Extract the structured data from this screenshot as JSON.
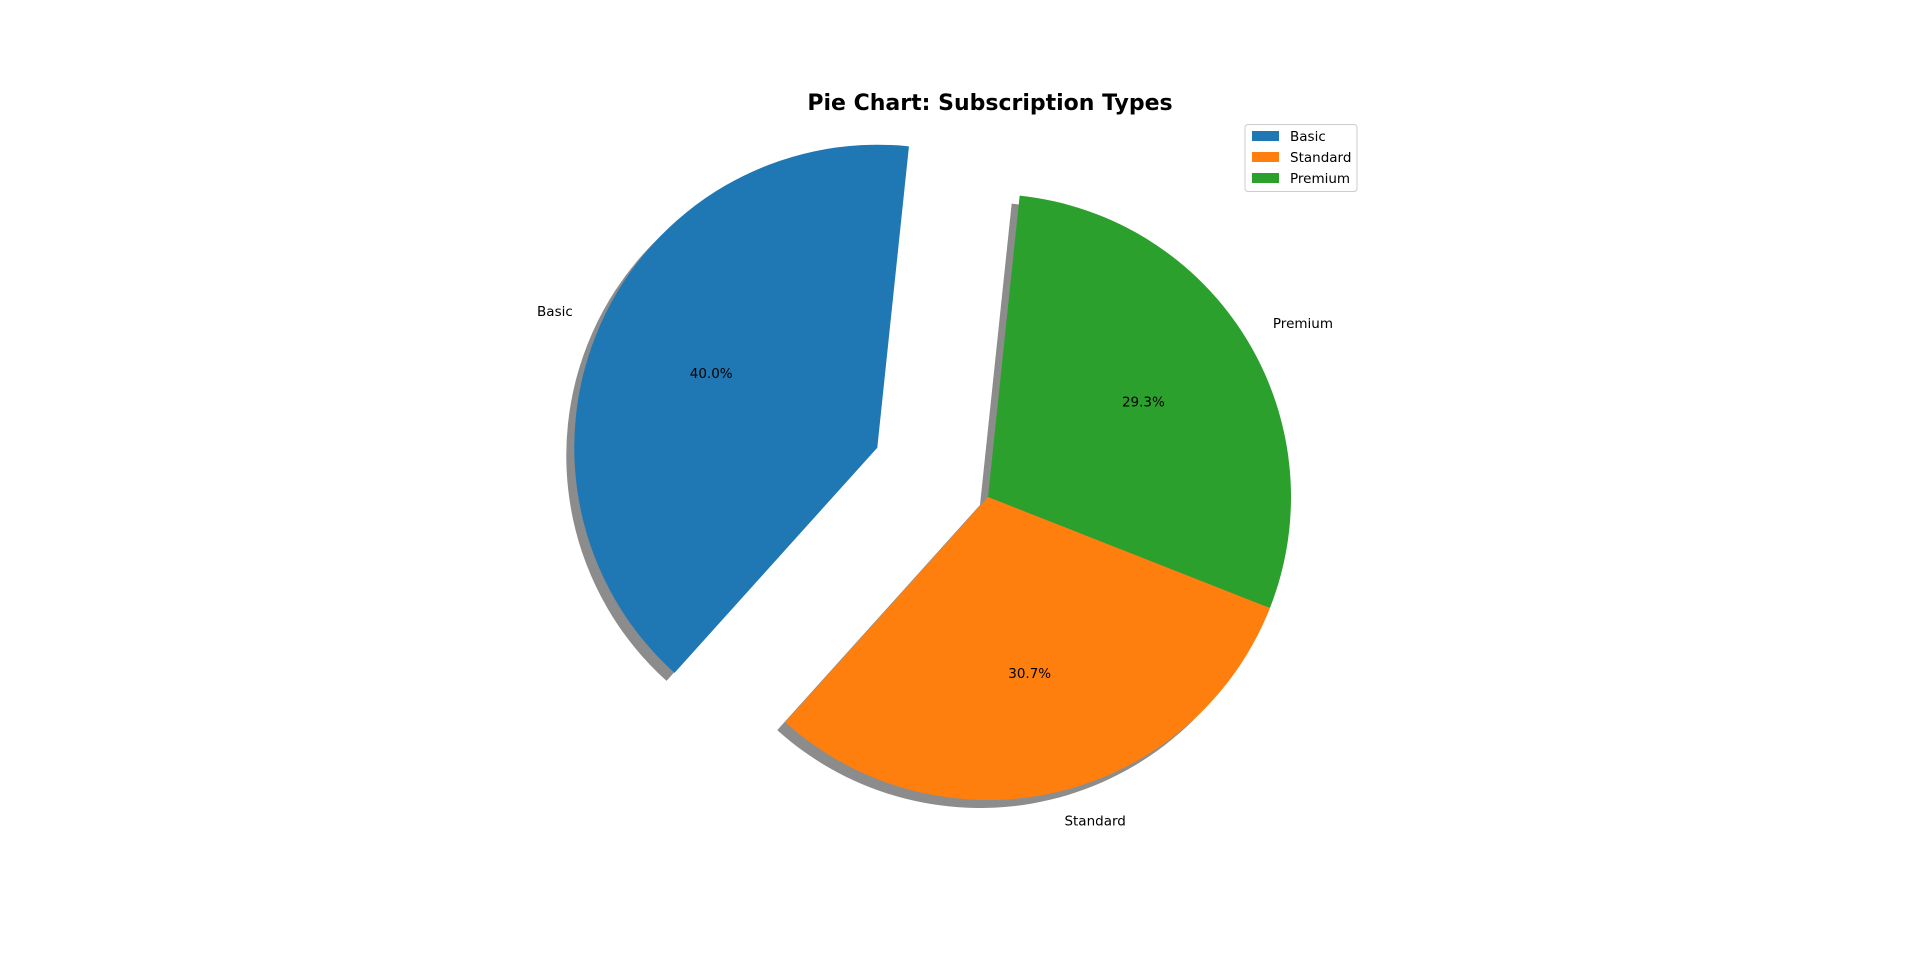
{
  "chart_data": {
    "type": "pie",
    "title": "Pie Chart: Subscription Types",
    "slices": [
      {
        "label": "Basic",
        "percent": 40.0,
        "pct_label": "40.0%",
        "color": "#1f77b4",
        "exploded": true
      },
      {
        "label": "Standard",
        "percent": 30.7,
        "pct_label": "30.7%",
        "color": "#ff7f0e",
        "exploded": false
      },
      {
        "label": "Premium",
        "percent": 29.3,
        "pct_label": "29.3%",
        "color": "#2ca02c",
        "exploded": false
      }
    ],
    "shadow": true,
    "legend": {
      "placement": "top-right",
      "entries": [
        "Basic",
        "Standard",
        "Premium"
      ]
    }
  }
}
